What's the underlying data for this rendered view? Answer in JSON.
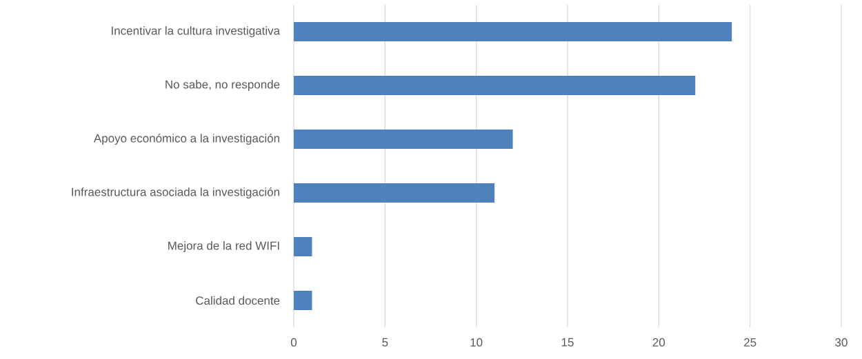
{
  "chart_data": {
    "type": "bar",
    "orientation": "horizontal",
    "categories": [
      "Incentivar la cultura investigativa",
      "No sabe, no responde",
      "Apoyo económico a la investigación",
      "Infraestructura asociada la investigación",
      "Mejora de la red WIFI",
      "Calidad docente"
    ],
    "values": [
      24,
      22,
      12,
      11,
      1,
      1
    ],
    "color": "#4f81bd",
    "xlim": [
      0,
      30
    ],
    "xticks": [
      0,
      5,
      10,
      15,
      20,
      25,
      30
    ],
    "grid": "x"
  }
}
